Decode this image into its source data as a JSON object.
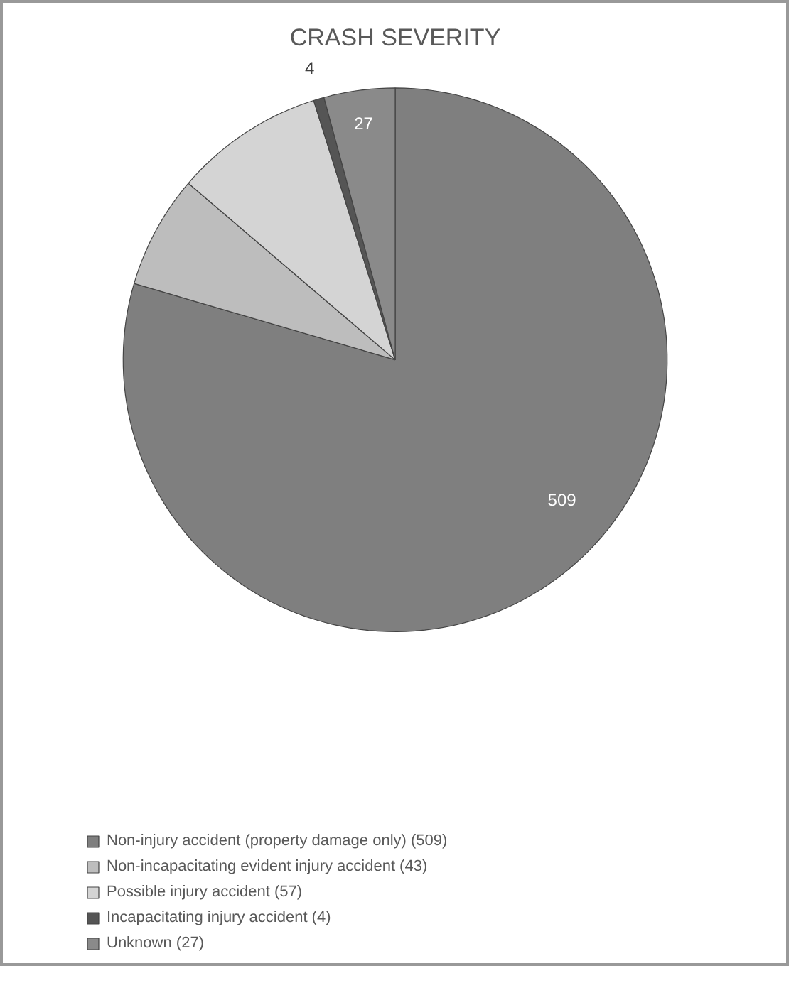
{
  "chart_data": {
    "type": "pie",
    "title": "CRASH SEVERITY",
    "categories": [
      "Non-injury accident (property damage only) (509)",
      "Non-incapacitating evident injury accident (43)",
      "Possible injury accident (57)",
      "Incapacitating injury accident (4)",
      "Unknown (27)"
    ],
    "values": [
      509,
      43,
      57,
      4,
      27
    ],
    "colors": [
      "#7f7f7f",
      "#bdbdbd",
      "#d4d4d4",
      "#555555",
      "#8a8a8a"
    ],
    "value_labels": [
      "509",
      null,
      null,
      "4",
      "27"
    ],
    "legend": "bottom"
  }
}
